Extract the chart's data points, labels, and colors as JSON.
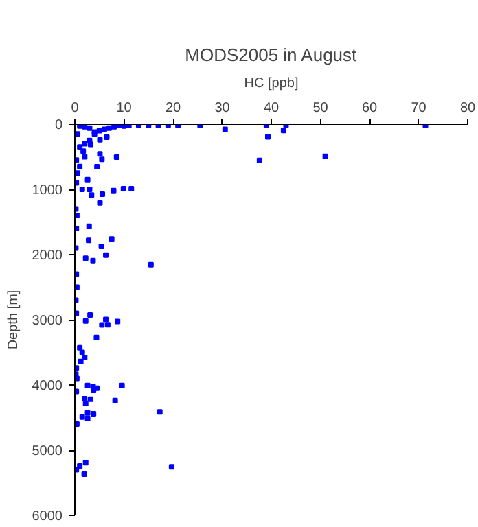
{
  "chart_data": {
    "type": "scatter",
    "title": "MODS2005 in August",
    "xlabel": "HC [ppb]",
    "ylabel": "Depth [m]",
    "xlim": [
      0,
      80
    ],
    "xticks": [
      0,
      10,
      20,
      30,
      40,
      50,
      60,
      70,
      80
    ],
    "ylim": [
      6000,
      0
    ],
    "yticks": [
      0,
      1000,
      2000,
      3000,
      4000,
      5000,
      6000
    ],
    "grid": false,
    "marker": "square",
    "series": [
      {
        "color": "#0000ff",
        "x": [
          71.4,
          43,
          39,
          25.5,
          21,
          19,
          17,
          15,
          13,
          11,
          10,
          9,
          8,
          7,
          6,
          5,
          4,
          3,
          2,
          1,
          0.5,
          30.6,
          42.5,
          39.3,
          51,
          37.6,
          8.5,
          5.1,
          5.5,
          4.5,
          2.6,
          9.9,
          11.5,
          7.9,
          5.6,
          3.4,
          5.1,
          1.5,
          3,
          6.5,
          5.1,
          3.2,
          1.7,
          0.3,
          4,
          3,
          2,
          1,
          2,
          1,
          0.5,
          0.3,
          0.2,
          0.4,
          0.3,
          0.2,
          2.9,
          7.5,
          2.8,
          5.4,
          6.3,
          2.2,
          3.7,
          15.5,
          0.3,
          0.4,
          0.2,
          0.3,
          3.1,
          6.3,
          8.7,
          5.5,
          6.7,
          2.2,
          4.4,
          1,
          1.5,
          2,
          1.2,
          0.3,
          0.2,
          0.4,
          0.3,
          2.6,
          3.7,
          4.5,
          9.6,
          3.8,
          8.2,
          2,
          3.2,
          2.2,
          17.3,
          2.6,
          3.8,
          1.5,
          2.6,
          2.2,
          19.7,
          1,
          1.9,
          0.4,
          0.3
        ],
        "values": [
          15,
          15,
          15,
          15,
          15,
          15,
          15,
          15,
          15,
          20,
          30,
          20,
          40,
          60,
          80,
          100,
          120,
          60,
          40,
          30,
          150,
          78,
          98,
          196,
          491,
          554,
          505,
          456,
          540,
          653,
          849,
          989,
          989,
          1018,
          1074,
          1088,
          1207,
          1000,
          1000,
          200,
          240,
          310,
          414,
          550,
          150,
          250,
          300,
          350,
          500,
          650,
          750,
          900,
          1300,
          1400,
          1600,
          1900,
          1565,
          1761,
          1782,
          1874,
          2007,
          2056,
          2091,
          2154,
          2300,
          2500,
          2700,
          2900,
          2926,
          2996,
          3025,
          3080,
          3075,
          3018,
          3270,
          3430,
          3500,
          3580,
          3640,
          3740,
          3835,
          3900,
          4100,
          4007,
          4021,
          4049,
          4007,
          4077,
          4239,
          4211,
          4218,
          4282,
          4414,
          4428,
          4442,
          4491,
          4512,
          5193,
          5256,
          5242,
          5368,
          4600,
          5300
        ]
      }
    ]
  }
}
